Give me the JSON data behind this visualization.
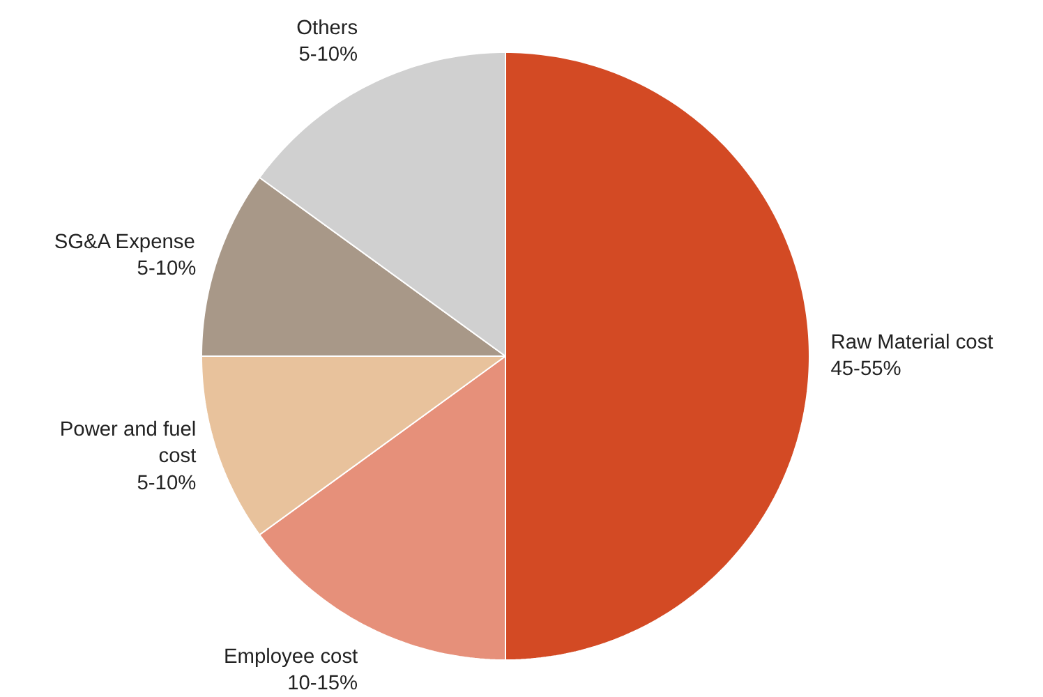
{
  "chart_data": {
    "type": "pie",
    "categories": [
      "Raw Material cost 45-55%",
      "Employee cost 10-15%",
      "Power and fuel cost 5-10%",
      "SG&A Expense 5-10%",
      "Others 5-10%"
    ],
    "values": [
      50,
      15,
      10,
      10,
      15
    ],
    "colors": [
      "#d34a24",
      "#e6907a",
      "#e8c29c",
      "#a89888",
      "#d0d0d0"
    ]
  }
}
